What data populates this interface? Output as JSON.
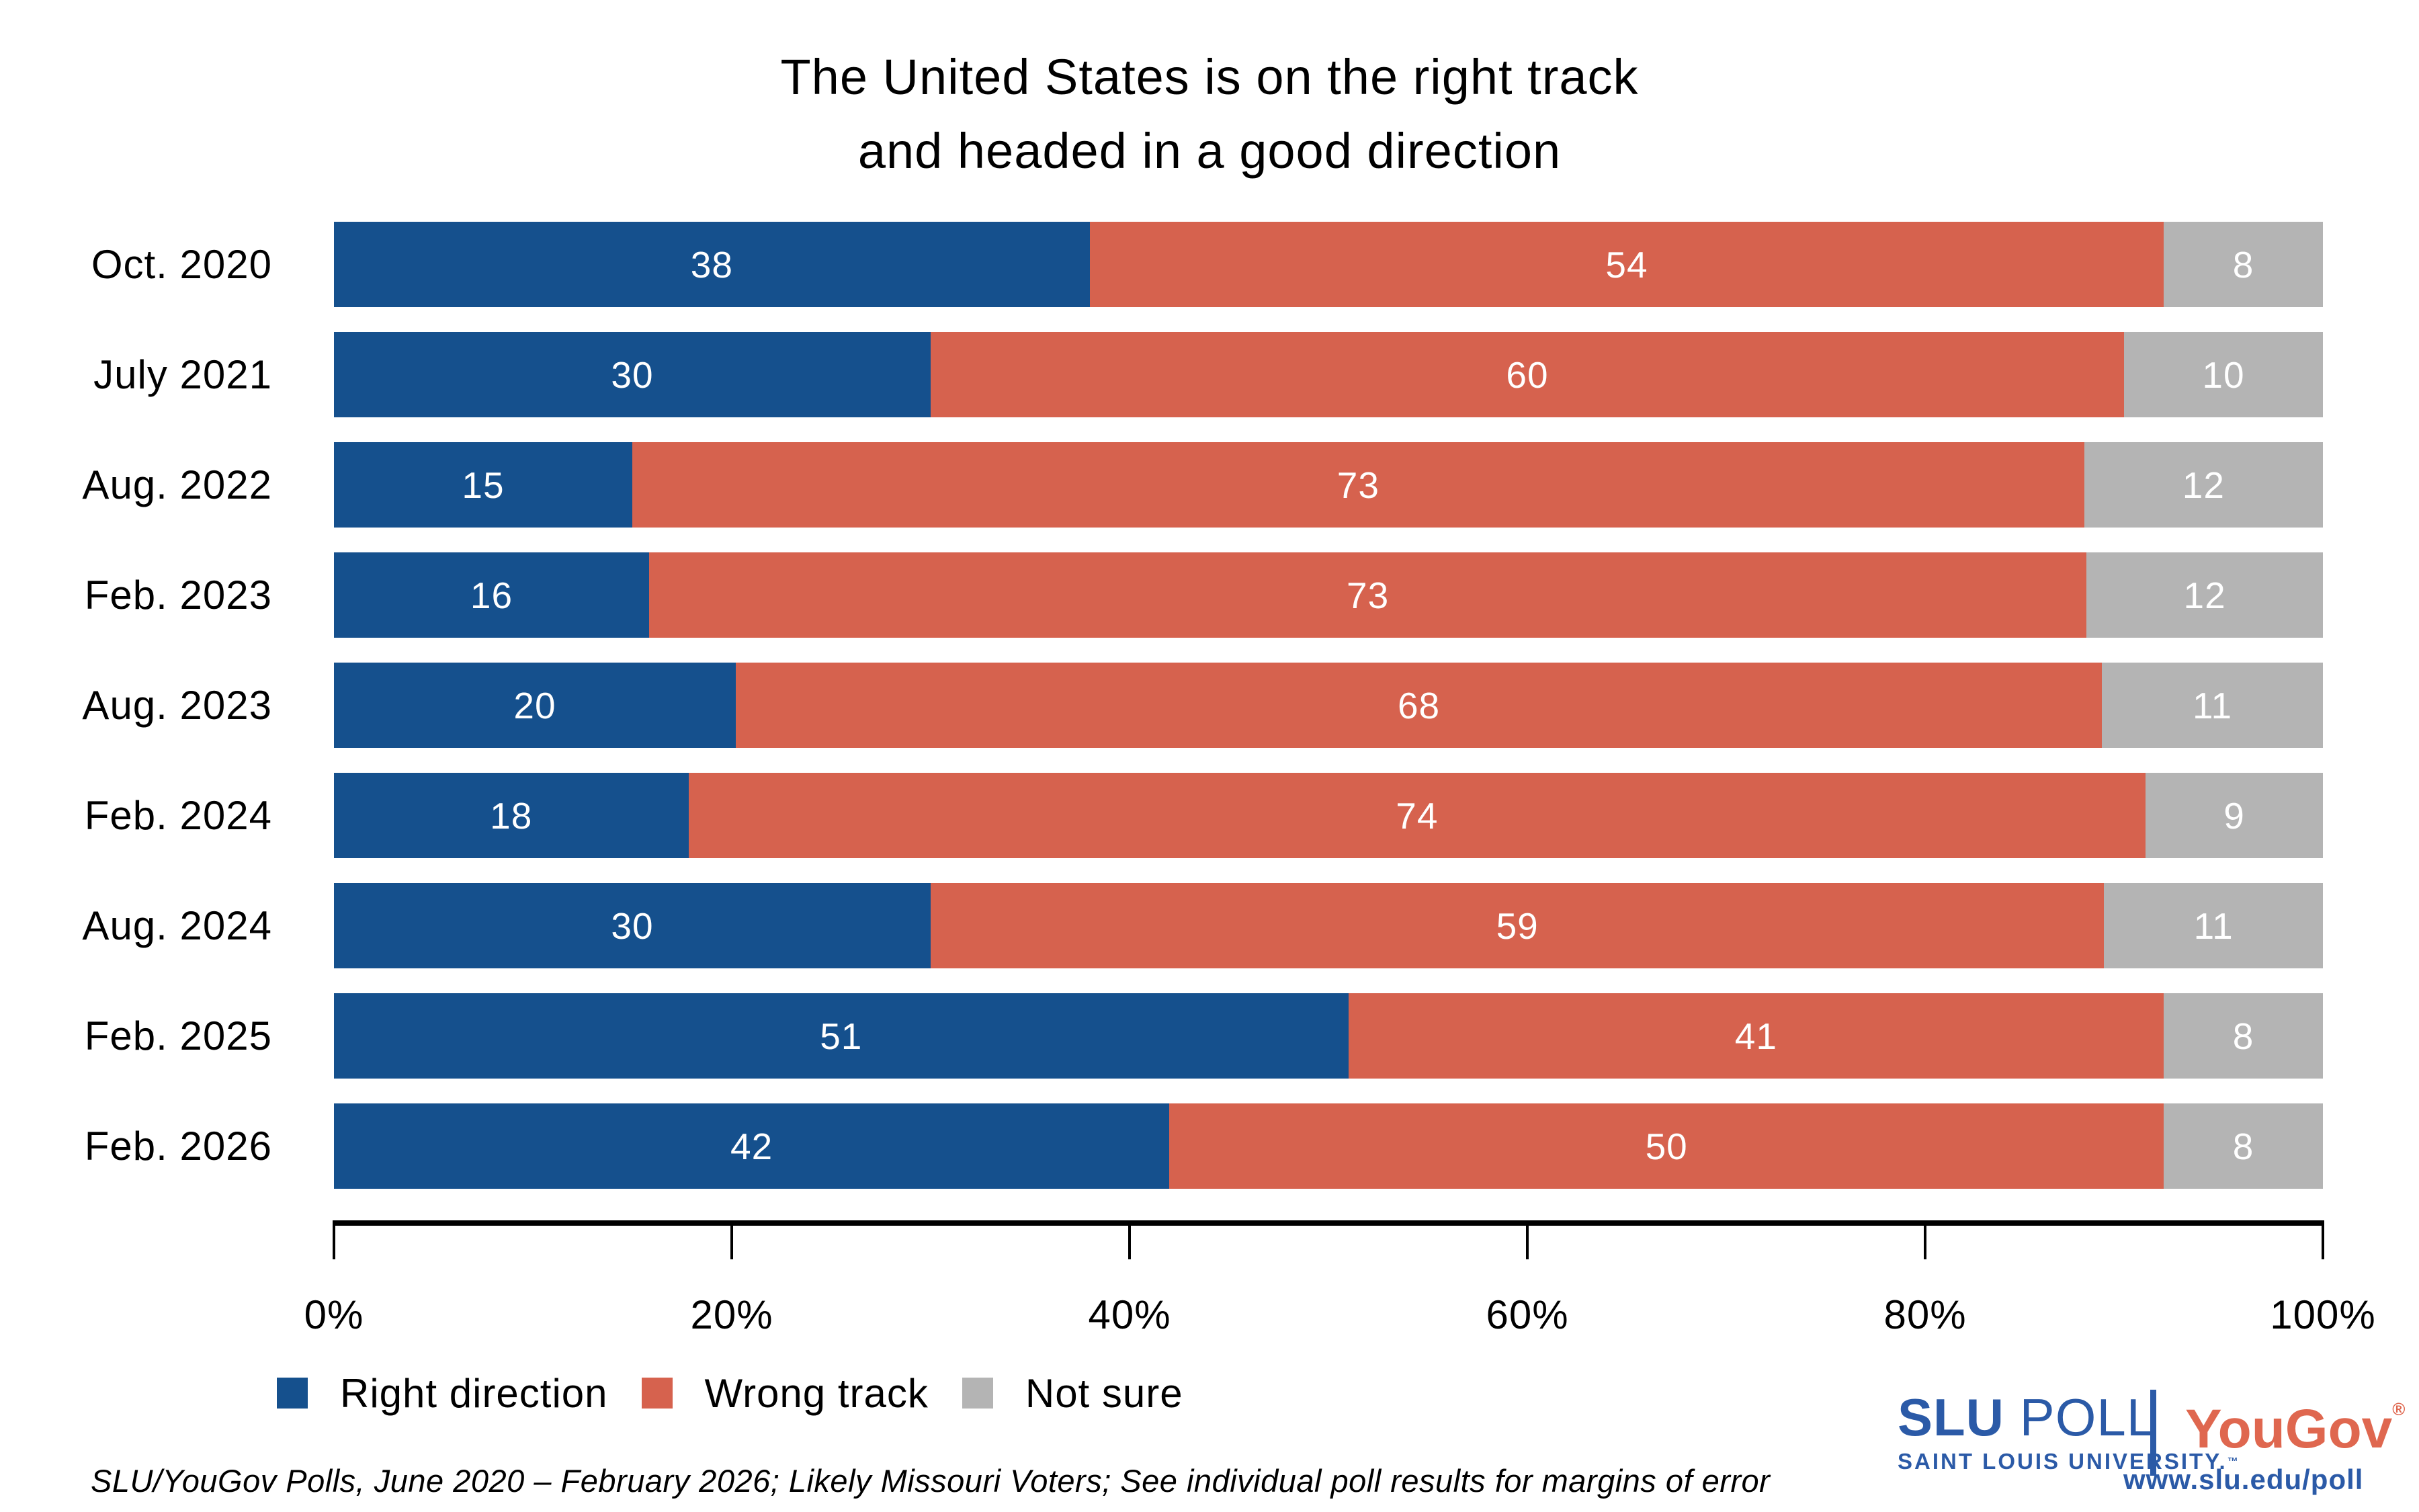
{
  "title": {
    "line1": "The United States is on the right track",
    "line2": "and headed in a good direction"
  },
  "chart_data": {
    "type": "bar",
    "stacked": true,
    "orientation": "horizontal",
    "normalized_to_100": true,
    "categories": [
      "Oct. 2020",
      "July 2021",
      "Aug. 2022",
      "Feb. 2023",
      "Aug. 2023",
      "Feb. 2024",
      "Aug. 2024",
      "Feb. 2025",
      "Feb. 2026"
    ],
    "series": [
      {
        "name": "Right direction",
        "color": "#15508D",
        "values": [
          38,
          30,
          15,
          16,
          20,
          18,
          30,
          51,
          42
        ]
      },
      {
        "name": "Wrong track",
        "color": "#D6624E",
        "values": [
          54,
          60,
          73,
          73,
          68,
          74,
          59,
          41,
          50
        ]
      },
      {
        "name": "Not sure",
        "color": "#B4B4B4",
        "values": [
          8,
          10,
          12,
          12,
          11,
          9,
          11,
          8,
          8
        ]
      }
    ],
    "xlim": [
      0,
      100
    ],
    "xticks": [
      "0%",
      "20%",
      "40%",
      "60%",
      "80%",
      "100%"
    ],
    "bar_label_color": "#FFFFFF",
    "grid": false,
    "legend_position": "bottom-left"
  },
  "footer": {
    "note": "SLU/YouGov Polls, June 2020 – February 2026; Likely Missouri Voters; See individual poll results for margins of error"
  },
  "branding": {
    "slu_bold": "SLU",
    "slu_rest": " POLL",
    "slu_subtitle": "SAINT LOUIS UNIVERSITY.",
    "slu_tm": "™",
    "yougov": "YouGov",
    "yougov_reg": "®",
    "url": "www.slu.edu/poll",
    "slu_blue": "#2B5AA7",
    "yougov_red": "#DF674F"
  }
}
